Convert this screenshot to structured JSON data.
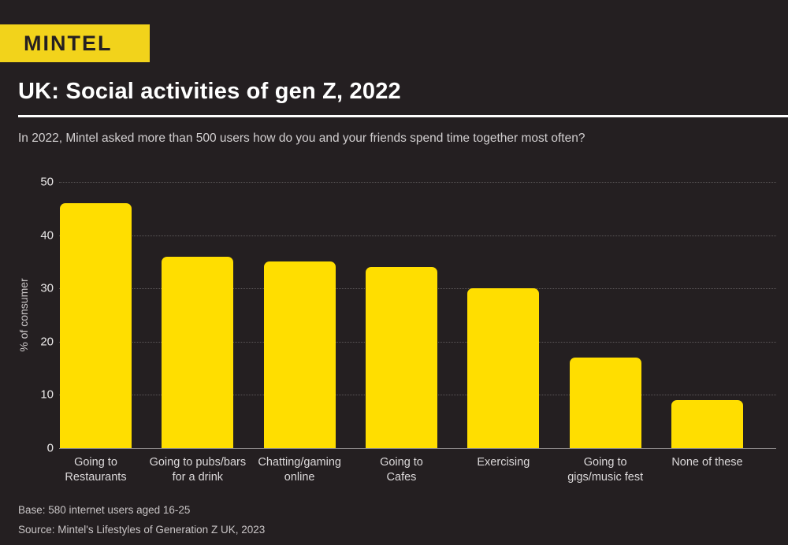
{
  "brand": {
    "logo_text": "MINTEL"
  },
  "header": {
    "title": "UK: Social activities of gen Z, 2022",
    "subtitle": "In 2022, Mintel asked more than 500 users how do you and your friends spend time together most often?"
  },
  "chart_data": {
    "type": "bar",
    "title": "UK: Social activities of gen Z, 2022",
    "categories": [
      "Going to Restaurants",
      "Going to pubs/bars for a drink",
      "Chatting/gaming online",
      "Going to Cafes",
      "Exercising",
      "Going to gigs/music fest",
      "None of these"
    ],
    "category_lines": [
      [
        "Going to",
        "Restaurants"
      ],
      [
        "Going to pubs/bars",
        "for a drink"
      ],
      [
        "Chatting/gaming",
        "online"
      ],
      [
        "Going to",
        "Cafes"
      ],
      [
        "Exercising"
      ],
      [
        "Going to",
        "gigs/music fest"
      ],
      [
        "None of these"
      ]
    ],
    "values": [
      46,
      36,
      35,
      34,
      30,
      17,
      9
    ],
    "xlabel": "",
    "ylabel": "% of consumer",
    "yticks": [
      0,
      10,
      20,
      30,
      40,
      50
    ],
    "ylim": [
      0,
      50
    ],
    "grid": "horizontal-dotted",
    "legend": "none",
    "bar_color": "#FFDE00"
  },
  "footer": {
    "base": "Base: 580 internet users aged 16-25",
    "source": "Source: Mintel's Lifestyles of Generation Z UK, 2023"
  },
  "colors": {
    "background": "#241F21",
    "bar_yellow": "#FFDE00",
    "logo_yellow": "#F2D31B",
    "title_text": "#FFFFFF",
    "muted_text": "#C9C5C6",
    "gridline": "#7B7778"
  }
}
